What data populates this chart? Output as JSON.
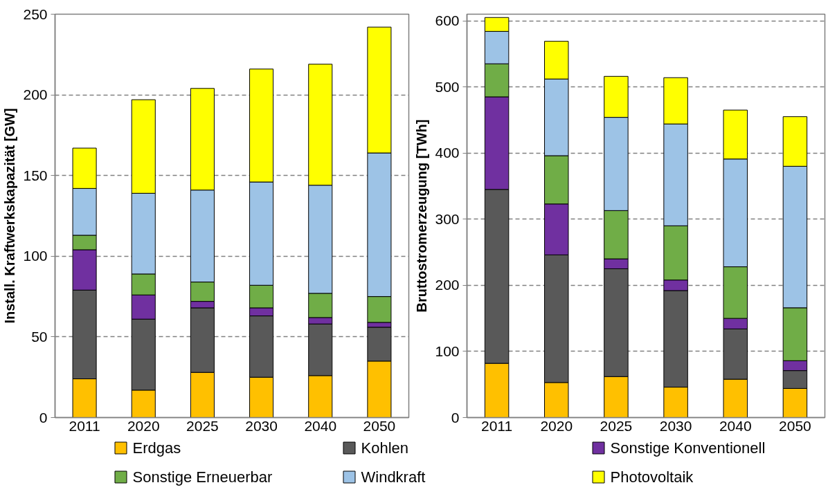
{
  "chart_data": [
    {
      "type": "bar",
      "stacked": true,
      "ylabel": "Install. Kraftwerkskapazität [GW]",
      "categories": [
        "2011",
        "2020",
        "2025",
        "2030",
        "2040",
        "2050"
      ],
      "ylim": [
        0,
        250
      ],
      "yticks": [
        0,
        50,
        100,
        150,
        200,
        250
      ],
      "grid": "y",
      "legend": "bottom",
      "series": [
        {
          "name": "Erdgas",
          "color": "#ffc000",
          "values": [
            24,
            17,
            28,
            25,
            26,
            35
          ]
        },
        {
          "name": "Kohlen",
          "color": "#595959",
          "values": [
            55,
            44,
            40,
            38,
            32,
            21
          ]
        },
        {
          "name": "Sonstige Konventionell",
          "color": "#7030a0",
          "values": [
            25,
            15,
            4,
            5,
            4,
            3
          ]
        },
        {
          "name": "Sonstige Erneuerbar",
          "color": "#70ad47",
          "values": [
            9,
            13,
            12,
            14,
            15,
            16
          ]
        },
        {
          "name": "Windkraft",
          "color": "#9dc3e6",
          "values": [
            29,
            50,
            57,
            64,
            67,
            89
          ]
        },
        {
          "name": "Photovoltaik",
          "color": "#ffff00",
          "values": [
            25,
            58,
            63,
            70,
            75,
            78
          ]
        }
      ]
    },
    {
      "type": "bar",
      "stacked": true,
      "ylabel": "Bruttostromerzeugung [TWh]",
      "categories": [
        "2011",
        "2020",
        "2025",
        "2030",
        "2040",
        "2050"
      ],
      "ylim": [
        0,
        610
      ],
      "yticks": [
        0,
        100,
        200,
        300,
        400,
        500,
        600
      ],
      "grid": "y",
      "series": [
        {
          "color": "#ffc000",
          "values": [
            82,
            53,
            62,
            46,
            58,
            44
          ]
        },
        {
          "color": "#595959",
          "values": [
            263,
            193,
            163,
            146,
            76,
            27
          ]
        },
        {
          "color": "#7030a0",
          "values": [
            140,
            77,
            15,
            16,
            16,
            15
          ]
        },
        {
          "color": "#70ad47",
          "values": [
            50,
            73,
            73,
            82,
            78,
            80
          ]
        },
        {
          "color": "#9dc3e6",
          "values": [
            49,
            116,
            141,
            154,
            163,
            214
          ]
        },
        {
          "color": "#ffff00",
          "values": [
            21,
            57,
            62,
            70,
            74,
            75
          ]
        }
      ]
    }
  ]
}
